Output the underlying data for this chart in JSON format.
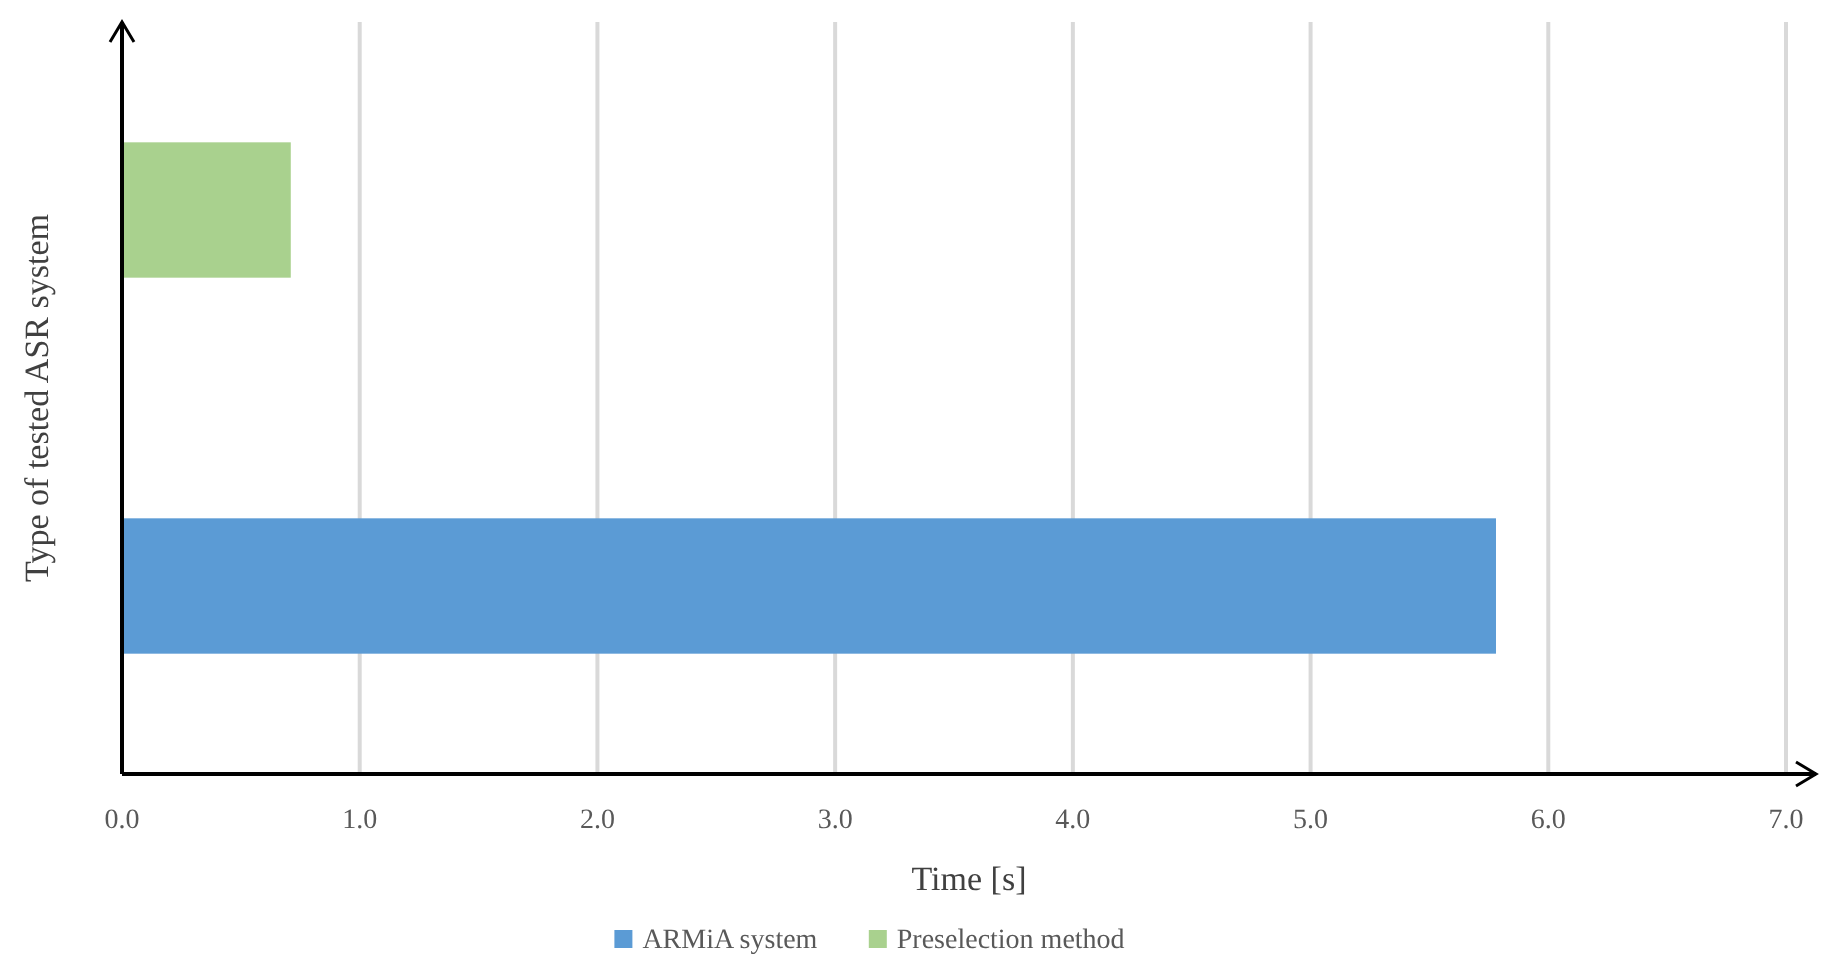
{
  "chart_data": {
    "type": "bar",
    "orientation": "horizontal",
    "xlabel": "Time [s]",
    "ylabel": "Type of tested ASR system",
    "categories": [
      null,
      null
    ],
    "series": [
      {
        "name": "ARMiA system",
        "color": "#5b9bd5",
        "values": [
          null,
          5.78
        ]
      },
      {
        "name": "Preselection method",
        "color": "#a9d18e",
        "values": [
          0.71,
          null
        ]
      }
    ],
    "xlim": [
      0,
      7
    ],
    "xticks": [
      {
        "value": 0,
        "label": "0.0"
      },
      {
        "value": 1,
        "label": "1.0"
      },
      {
        "value": 2,
        "label": "2.0"
      },
      {
        "value": 3,
        "label": "3.0"
      },
      {
        "value": 4,
        "label": "4.0"
      },
      {
        "value": 5,
        "label": "5.0"
      },
      {
        "value": 6,
        "label": "6.0"
      },
      {
        "value": 7,
        "label": "7.0"
      }
    ],
    "grid": "x",
    "legend": "bottom"
  }
}
